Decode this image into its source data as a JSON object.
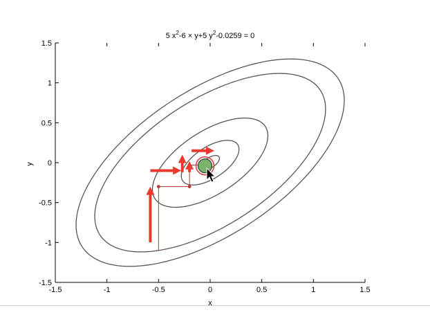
{
  "chart_data": {
    "type": "line",
    "title": "5 x²-6 × y+5 y²-0.0259 = 0",
    "title_parts": {
      "coef_a": "5 x",
      "exp_a": "2",
      "middle": "-6 × y+5 y",
      "exp_b": "2",
      "tail": "-0.0259 = 0"
    },
    "xlabel": "x",
    "ylabel": "y",
    "xlim": [
      -1.5,
      1.5
    ],
    "ylim": [
      -1.5,
      1.5
    ],
    "xticks": [
      -1.5,
      -1,
      -0.5,
      0,
      0.5,
      1,
      1.5
    ],
    "xtick_labels": [
      "-1.5",
      "-1",
      "-0.5",
      "0",
      "0.5",
      "1",
      "1.5"
    ],
    "yticks": [
      -1.5,
      -1,
      -0.5,
      0,
      0.5,
      1,
      1.5
    ],
    "ytick_labels": [
      "-1.5",
      "-1",
      "-0.5",
      "0",
      "0.5",
      "1",
      "1.5"
    ],
    "grid": false,
    "contour_levels": [
      0.0259,
      0.25,
      1.0,
      4.0,
      5.4
    ],
    "contour_color": "#555555",
    "descent_path": {
      "x": [
        -0.5,
        -0.5,
        -0.2,
        -0.2,
        -0.03,
        -0.03
      ],
      "y": [
        -1.1,
        -0.3,
        -0.3,
        -0.03,
        -0.03,
        -0.05
      ],
      "color": "#b03a3a"
    },
    "gradient_arrows": [
      {
        "x": -0.58,
        "y": -1.0,
        "dx": 0.0,
        "dy": 0.7
      },
      {
        "x": -0.58,
        "y": -0.1,
        "dx": 0.3,
        "dy": 0.0
      },
      {
        "x": -0.27,
        "y": -0.12,
        "dx": 0.0,
        "dy": 0.22
      },
      {
        "x": -0.2,
        "y": -0.12,
        "dx": 0.0,
        "dy": 0.14
      },
      {
        "x": -0.18,
        "y": 0.15,
        "dx": 0.22,
        "dy": 0.0
      }
    ],
    "arrow_color": "#e83a2e",
    "minimum_marker": {
      "x": -0.05,
      "y": -0.04,
      "fill": "#7ab36a",
      "ring": "#d23a3a"
    }
  }
}
